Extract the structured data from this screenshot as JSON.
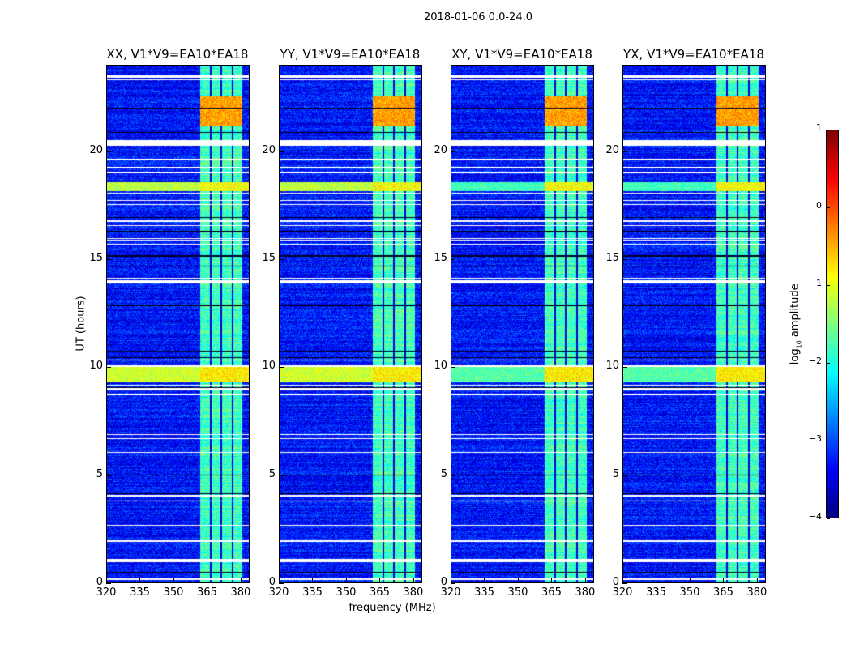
{
  "chart_data": {
    "type": "heatmap",
    "suptitle": "2018-01-06 0.0-24.0",
    "panels": [
      {
        "title": "XX, V1*V9=EA10*EA18"
      },
      {
        "title": "YY, V1*V9=EA10*EA18"
      },
      {
        "title": "XY, V1*V9=EA10*EA18"
      },
      {
        "title": "YX, V1*V9=EA10*EA18"
      }
    ],
    "xlabel": "frequency (MHz)",
    "ylabel": "UT (hours)",
    "xlim": [
      320,
      384
    ],
    "ylim": [
      0,
      24
    ],
    "xticks": [
      "320",
      "335",
      "350",
      "365",
      "380"
    ],
    "yticks": [
      "0",
      "5",
      "10",
      "15",
      "20"
    ],
    "colorbar": {
      "label": "log10 amplitude",
      "label_main": "log",
      "label_sub": "10",
      "label_rest": " amplitude",
      "range": [
        -4,
        1
      ],
      "ticks": [
        "1",
        "0",
        "−1",
        "−2",
        "−3",
        "−4"
      ],
      "colormap": "jet"
    },
    "background_level": -3.3,
    "band": {
      "freq_range": [
        362,
        381
      ],
      "level": -1.8,
      "subband_edges": [
        366.5,
        371.5,
        376.5
      ]
    },
    "hot_regions": [
      {
        "hours": [
          21.2,
          22.6
        ],
        "freq_range": [
          362,
          381
        ],
        "level": -0.4
      },
      {
        "hours": [
          18.2,
          18.6
        ],
        "freq_range": [
          320,
          384
        ],
        "level": -0.9
      },
      {
        "hours": [
          9.3,
          10.1
        ],
        "freq_range": [
          320,
          384
        ],
        "level": -0.8
      }
    ],
    "flagged_gaps_hours": [
      [
        23.45,
        23.55
      ],
      [
        20.3,
        20.55
      ],
      [
        13.95,
        14.05
      ],
      [
        8.7,
        8.8
      ],
      [
        8.95,
        9.05
      ],
      [
        4.0,
        4.1
      ],
      [
        1.9,
        1.98
      ],
      [
        0.95,
        1.1
      ],
      [
        0.15,
        0.22
      ]
    ]
  }
}
